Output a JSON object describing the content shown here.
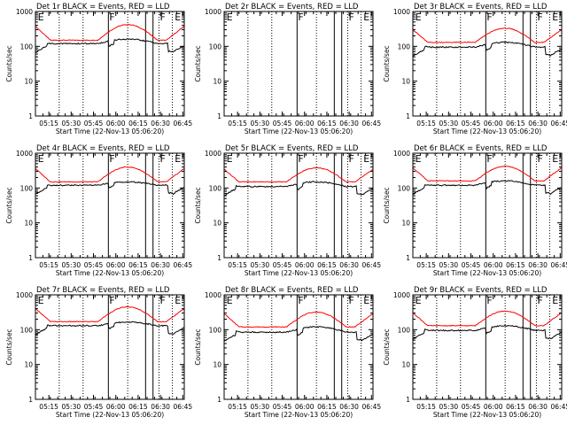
{
  "figure": {
    "title_suffix": "BLACK = Events, RED = LLD",
    "xlabel": "Start Time (22-Nov-13 05:06:20)",
    "ylabel": "Counts/sec",
    "x_tick_labels": [
      "05:15",
      "05:30",
      "05:45",
      "06:00",
      "06:15",
      "06:30",
      "06:45"
    ],
    "y_tick_labels": [
      "1",
      "10",
      "100",
      "1000"
    ]
  },
  "chart_data": [
    {
      "type": "line",
      "title": "Det 1r BLACK = Events, RED = LLD",
      "det": "Det 1r",
      "red_base": 150,
      "red_peak": 420,
      "black_base": 120,
      "black_peak": 160,
      "has_data": true,
      "x_range_min": [
        0,
        100
      ],
      "ylim_log": [
        1,
        1000
      ],
      "markers": [
        {
          "label": "E",
          "x_min": 1
        },
        {
          "label": "F",
          "x_min": 49
        },
        {
          "label": "F",
          "x_min": 83
        },
        {
          "label": "E",
          "x_min": 93
        }
      ],
      "solid_lines_min": [
        49,
        74,
        79
      ],
      "dotted_lines_min": [
        16,
        32,
        62,
        83,
        92
      ],
      "series": [
        {
          "name": "BLACK = Events",
          "color": "#000000"
        },
        {
          "name": "RED = LLD",
          "color": "#ff0000"
        }
      ]
    },
    {
      "type": "line",
      "title": "Det 2r BLACK = Events, RED = LLD",
      "det": "Det 2r",
      "has_data": false,
      "x_range_min": [
        0,
        100
      ],
      "ylim_log": [
        1,
        1000
      ],
      "markers": [
        {
          "label": "E",
          "x_min": 1
        },
        {
          "label": "F",
          "x_min": 49
        },
        {
          "label": "F",
          "x_min": 83
        },
        {
          "label": "E",
          "x_min": 93
        }
      ],
      "solid_lines_min": [
        49,
        74,
        79
      ],
      "dotted_lines_min": [
        16,
        32,
        62,
        83,
        92
      ],
      "series": [
        {
          "name": "BLACK = Events",
          "color": "#000000"
        },
        {
          "name": "RED = LLD",
          "color": "#ff0000"
        }
      ]
    },
    {
      "type": "line",
      "title": "Det 3r BLACK = Events, RED = LLD",
      "det": "Det 3r",
      "red_base": 130,
      "red_peak": 330,
      "black_base": 95,
      "black_peak": 130,
      "has_data": true,
      "x_range_min": [
        0,
        100
      ],
      "ylim_log": [
        1,
        1000
      ],
      "markers": [
        {
          "label": "E",
          "x_min": 1
        },
        {
          "label": "F",
          "x_min": 49
        },
        {
          "label": "F",
          "x_min": 83
        },
        {
          "label": "E",
          "x_min": 93
        }
      ],
      "solid_lines_min": [
        49,
        74,
        79
      ],
      "dotted_lines_min": [
        16,
        32,
        62,
        83,
        92
      ],
      "series": [
        {
          "name": "BLACK = Events",
          "color": "#000000"
        },
        {
          "name": "RED = LLD",
          "color": "#ff0000"
        }
      ]
    },
    {
      "type": "line",
      "title": "Det 4r BLACK = Events, RED = LLD",
      "det": "Det 4r",
      "red_base": 150,
      "red_peak": 400,
      "black_base": 120,
      "black_peak": 150,
      "has_data": true,
      "x_range_min": [
        0,
        100
      ],
      "ylim_log": [
        1,
        1000
      ],
      "markers": [
        {
          "label": "E",
          "x_min": 1
        },
        {
          "label": "F",
          "x_min": 49
        },
        {
          "label": "F",
          "x_min": 83
        },
        {
          "label": "E",
          "x_min": 93
        }
      ],
      "solid_lines_min": [
        49,
        74,
        79
      ],
      "dotted_lines_min": [
        16,
        32,
        62,
        83,
        92
      ],
      "series": [
        {
          "name": "BLACK = Events",
          "color": "#000000"
        },
        {
          "name": "RED = LLD",
          "color": "#ff0000"
        }
      ]
    },
    {
      "type": "line",
      "title": "Det 5r BLACK = Events, RED = LLD",
      "det": "Det 5r",
      "red_base": 150,
      "red_peak": 380,
      "black_base": 110,
      "black_peak": 150,
      "has_data": true,
      "x_range_min": [
        0,
        100
      ],
      "ylim_log": [
        1,
        1000
      ],
      "markers": [
        {
          "label": "E",
          "x_min": 1
        },
        {
          "label": "F",
          "x_min": 49
        },
        {
          "label": "F",
          "x_min": 83
        },
        {
          "label": "E",
          "x_min": 93
        }
      ],
      "solid_lines_min": [
        49,
        74,
        79
      ],
      "dotted_lines_min": [
        16,
        32,
        62,
        83,
        92
      ],
      "series": [
        {
          "name": "BLACK = Events",
          "color": "#000000"
        },
        {
          "name": "RED = LLD",
          "color": "#ff0000"
        }
      ]
    },
    {
      "type": "line",
      "title": "Det 6r BLACK = Events, RED = LLD",
      "det": "Det 6r",
      "red_base": 160,
      "red_peak": 420,
      "black_base": 120,
      "black_peak": 160,
      "has_data": true,
      "x_range_min": [
        0,
        100
      ],
      "ylim_log": [
        1,
        1000
      ],
      "markers": [
        {
          "label": "E",
          "x_min": 1
        },
        {
          "label": "F",
          "x_min": 49
        },
        {
          "label": "F",
          "x_min": 83
        },
        {
          "label": "E",
          "x_min": 93
        }
      ],
      "solid_lines_min": [
        49,
        74,
        79
      ],
      "dotted_lines_min": [
        16,
        32,
        62,
        83,
        92
      ],
      "series": [
        {
          "name": "BLACK = Events",
          "color": "#000000"
        },
        {
          "name": "RED = LLD",
          "color": "#ff0000"
        }
      ]
    },
    {
      "type": "line",
      "title": "Det 7r BLACK = Events, RED = LLD",
      "det": "Det 7r",
      "red_base": 170,
      "red_peak": 450,
      "black_base": 130,
      "black_peak": 165,
      "has_data": true,
      "x_range_min": [
        0,
        100
      ],
      "ylim_log": [
        1,
        1000
      ],
      "markers": [
        {
          "label": "E",
          "x_min": 1
        },
        {
          "label": "F",
          "x_min": 49
        },
        {
          "label": "F",
          "x_min": 83
        },
        {
          "label": "E",
          "x_min": 93
        }
      ],
      "solid_lines_min": [
        49,
        74,
        79
      ],
      "dotted_lines_min": [
        16,
        32,
        62,
        83,
        92
      ],
      "series": [
        {
          "name": "BLACK = Events",
          "color": "#000000"
        },
        {
          "name": "RED = LLD",
          "color": "#ff0000"
        }
      ]
    },
    {
      "type": "line",
      "title": "Det 8r BLACK = Events, RED = LLD",
      "det": "Det 8r",
      "red_base": 120,
      "red_peak": 320,
      "black_base": 85,
      "black_peak": 120,
      "has_data": true,
      "x_range_min": [
        0,
        100
      ],
      "ylim_log": [
        1,
        1000
      ],
      "markers": [
        {
          "label": "E",
          "x_min": 1
        },
        {
          "label": "F",
          "x_min": 49
        },
        {
          "label": "F",
          "x_min": 83
        },
        {
          "label": "E",
          "x_min": 93
        }
      ],
      "solid_lines_min": [
        49,
        74,
        79
      ],
      "dotted_lines_min": [
        16,
        32,
        62,
        83,
        92
      ],
      "series": [
        {
          "name": "BLACK = Events",
          "color": "#000000"
        },
        {
          "name": "RED = LLD",
          "color": "#ff0000"
        }
      ]
    },
    {
      "type": "line",
      "title": "Det 9r BLACK = Events, RED = LLD",
      "det": "Det 9r",
      "red_base": 130,
      "red_peak": 340,
      "black_base": 95,
      "black_peak": 130,
      "has_data": true,
      "x_range_min": [
        0,
        100
      ],
      "ylim_log": [
        1,
        1000
      ],
      "markers": [
        {
          "label": "E",
          "x_min": 1
        },
        {
          "label": "F",
          "x_min": 49
        },
        {
          "label": "F",
          "x_min": 83
        },
        {
          "label": "E",
          "x_min": 93
        }
      ],
      "solid_lines_min": [
        49,
        74,
        79
      ],
      "dotted_lines_min": [
        16,
        32,
        62,
        83,
        92
      ],
      "series": [
        {
          "name": "BLACK = Events",
          "color": "#000000"
        },
        {
          "name": "RED = LLD",
          "color": "#ff0000"
        }
      ]
    }
  ]
}
